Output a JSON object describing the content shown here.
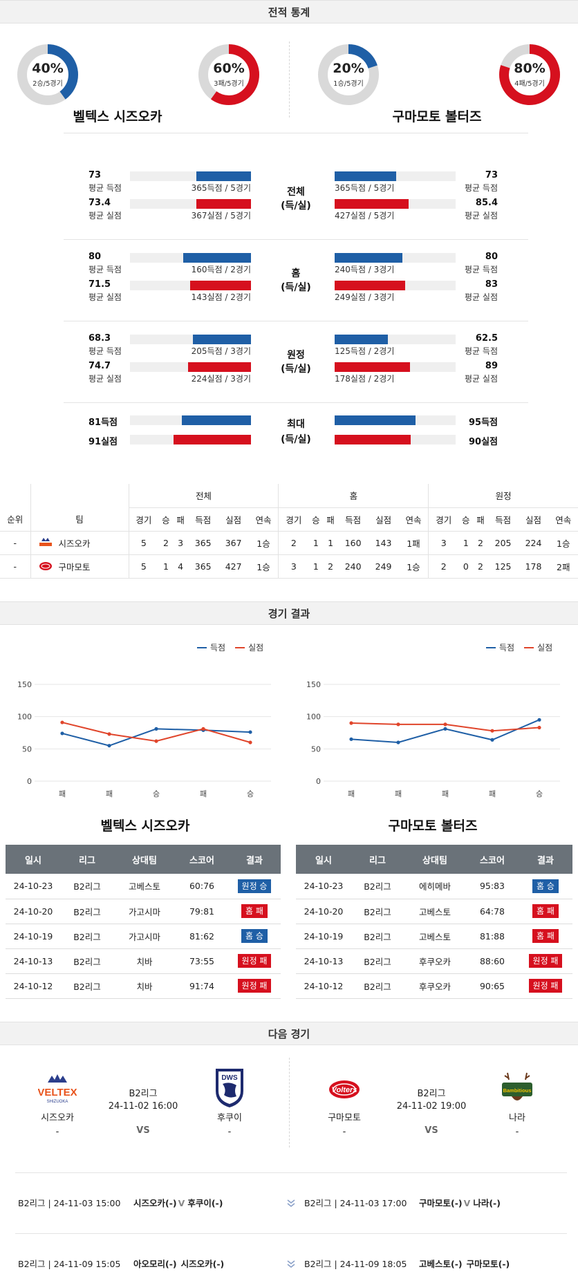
{
  "sections": {
    "record": "전적 통계",
    "results": "경기 결과",
    "next": "다음 경기"
  },
  "record": {
    "home_team": "벨텍스 시즈오카",
    "away_team": "구마모토 볼터즈",
    "donuts": [
      {
        "pct": "40%",
        "sub": "2승/5경기",
        "value": 0.4,
        "color": "#1f5fa6"
      },
      {
        "pct": "60%",
        "sub": "3패/5경기",
        "value": 0.6,
        "color": "#d6101e"
      },
      {
        "pct": "20%",
        "sub": "1승/5경기",
        "value": 0.2,
        "color": "#1f5fa6"
      },
      {
        "pct": "80%",
        "sub": "4패/5경기",
        "value": 0.8,
        "color": "#d6101e"
      }
    ],
    "groups": [
      {
        "mid1": "전체",
        "mid2": "(득/실)",
        "l1": {
          "val": "73",
          "lbl": "평균 득점",
          "bar": "365득점 / 5경기",
          "frac": 0.45
        },
        "l2": {
          "val": "73.4",
          "lbl": "평균 실점",
          "bar": "367실점 / 5경기",
          "frac": 0.45
        },
        "r1": {
          "val": "73",
          "lbl": "평균 득점",
          "bar": "365득점 / 5경기",
          "frac": 0.51
        },
        "r2": {
          "val": "85.4",
          "lbl": "평균 실점",
          "bar": "427실점 / 5경기",
          "frac": 0.61
        }
      },
      {
        "mid1": "홈",
        "mid2": "(득/실)",
        "l1": {
          "val": "80",
          "lbl": "평균 득점",
          "bar": "160득점 / 2경기",
          "frac": 0.56
        },
        "l2": {
          "val": "71.5",
          "lbl": "평균 실점",
          "bar": "143실점 / 2경기",
          "frac": 0.5
        },
        "r1": {
          "val": "80",
          "lbl": "평균 득점",
          "bar": "240득점 / 3경기",
          "frac": 0.56
        },
        "r2": {
          "val": "83",
          "lbl": "평균 실점",
          "bar": "249실점 / 3경기",
          "frac": 0.58
        }
      },
      {
        "mid1": "원정",
        "mid2": "(득/실)",
        "l1": {
          "val": "68.3",
          "lbl": "평균 득점",
          "bar": "205득점 / 3경기",
          "frac": 0.48
        },
        "l2": {
          "val": "74.7",
          "lbl": "평균 실점",
          "bar": "224실점 / 3경기",
          "frac": 0.52
        },
        "r1": {
          "val": "62.5",
          "lbl": "평균 득점",
          "bar": "125득점 / 2경기",
          "frac": 0.44
        },
        "r2": {
          "val": "89",
          "lbl": "평균 실점",
          "bar": "178실점 / 2경기",
          "frac": 0.62
        }
      }
    ],
    "max": {
      "mid1": "최대",
      "mid2": "(득/실)",
      "l1": {
        "val": "81득점",
        "frac": 0.57
      },
      "l2": {
        "val": "91실점",
        "frac": 0.64
      },
      "r1": {
        "val": "95득점",
        "frac": 0.67
      },
      "r2": {
        "val": "90실점",
        "frac": 0.63
      }
    }
  },
  "standings": {
    "groups": [
      "전체",
      "홈",
      "원정"
    ],
    "headers": [
      "순위",
      "팀",
      "경기",
      "승",
      "패",
      "득점",
      "실점",
      "연속",
      "경기",
      "승",
      "패",
      "득점",
      "실점",
      "연속",
      "경기",
      "승",
      "패",
      "득점",
      "실점",
      "연속"
    ],
    "rows": [
      [
        "-",
        "시즈오카",
        "5",
        "2",
        "3",
        "365",
        "367",
        "1승",
        "2",
        "1",
        "1",
        "160",
        "143",
        "1패",
        "3",
        "1",
        "2",
        "205",
        "224",
        "1승"
      ],
      [
        "-",
        "구마모토",
        "5",
        "1",
        "4",
        "365",
        "427",
        "1승",
        "3",
        "1",
        "2",
        "240",
        "249",
        "1승",
        "2",
        "0",
        "2",
        "125",
        "178",
        "2패"
      ]
    ]
  },
  "results": {
    "legend": {
      "scored": "득점",
      "conceded": "실점"
    },
    "teams": [
      "벨텍스 시즈오카",
      "구마모토 볼터즈"
    ],
    "headers": [
      "일시",
      "리그",
      "상대팀",
      "스코어",
      "결과"
    ],
    "left_rows": [
      {
        "date": "24-10-23",
        "league": "B2리그",
        "opp": "고베스토",
        "score": "60:76",
        "result": "원정 승",
        "color": "blue"
      },
      {
        "date": "24-10-20",
        "league": "B2리그",
        "opp": "가고시마",
        "score": "79:81",
        "result": "홈 패",
        "color": "red"
      },
      {
        "date": "24-10-19",
        "league": "B2리그",
        "opp": "가고시마",
        "score": "81:62",
        "result": "홈 승",
        "color": "blue"
      },
      {
        "date": "24-10-13",
        "league": "B2리그",
        "opp": "치바",
        "score": "73:55",
        "result": "원정 패",
        "color": "red"
      },
      {
        "date": "24-10-12",
        "league": "B2리그",
        "opp": "치바",
        "score": "91:74",
        "result": "원정 패",
        "color": "red"
      }
    ],
    "right_rows": [
      {
        "date": "24-10-23",
        "league": "B2리그",
        "opp": "에히메바",
        "score": "95:83",
        "result": "홈 승",
        "color": "blue"
      },
      {
        "date": "24-10-20",
        "league": "B2리그",
        "opp": "고베스토",
        "score": "64:78",
        "result": "홈 패",
        "color": "red"
      },
      {
        "date": "24-10-19",
        "league": "B2리그",
        "opp": "고베스토",
        "score": "81:88",
        "result": "홈 패",
        "color": "red"
      },
      {
        "date": "24-10-13",
        "league": "B2리그",
        "opp": "후쿠오카",
        "score": "88:60",
        "result": "원정 패",
        "color": "red"
      },
      {
        "date": "24-10-12",
        "league": "B2리그",
        "opp": "후쿠오카",
        "score": "90:65",
        "result": "원정 패",
        "color": "red"
      }
    ]
  },
  "chart_data": [
    {
      "type": "line",
      "categories": [
        "패",
        "패",
        "승",
        "패",
        "승"
      ],
      "ylim": [
        0,
        150
      ],
      "yticks": [
        "0",
        "50",
        "100",
        "150"
      ],
      "series": [
        {
          "name": "득점",
          "color": "#1f5fa6",
          "values": [
            74,
            55,
            81,
            79,
            76
          ]
        },
        {
          "name": "실점",
          "color": "#e0452b",
          "values": [
            91,
            73,
            62,
            81,
            60
          ]
        }
      ]
    },
    {
      "type": "line",
      "categories": [
        "패",
        "패",
        "패",
        "패",
        "승"
      ],
      "ylim": [
        0,
        150
      ],
      "yticks": [
        "0",
        "50",
        "100",
        "150"
      ],
      "series": [
        {
          "name": "득점",
          "color": "#1f5fa6",
          "values": [
            65,
            60,
            81,
            64,
            95
          ]
        },
        {
          "name": "실점",
          "color": "#e0452b",
          "values": [
            90,
            88,
            88,
            78,
            83
          ]
        }
      ]
    }
  ],
  "next": {
    "left": {
      "home": "시즈오카",
      "home_rec": "-",
      "league": "B2리그",
      "datetime": "24-11-02 16:00",
      "vs": "VS",
      "away": "후쿠이",
      "away_rec": "-",
      "home_logo": "VELTEX",
      "home_logo_sub": "SHIZUOKA",
      "away_logo": "DWS"
    },
    "right": {
      "home": "구마모토",
      "home_rec": "-",
      "league": "B2리그",
      "datetime": "24-11-02 19:00",
      "vs": "VS",
      "away": "나라",
      "away_rec": "-",
      "home_logo": "Volters",
      "away_logo": "Bambitious"
    },
    "schedule": [
      {
        "left_info": "B2리그 | 24-11-03 15:00",
        "left_match": "시즈오카(-)",
        "left_sep": "V",
        "left_opp": "후쿠이(-)",
        "right_info": "B2리그 | 24-11-03 17:00",
        "right_match": "구마모토(-)",
        "right_sep": "V",
        "right_opp": "나라(-)"
      },
      {
        "left_info": "B2리그 | 24-11-09 15:05",
        "left_match": "아오모리(-)",
        "left_sep": "",
        "left_opp": "시즈오카(-)",
        "right_info": "B2리그 | 24-11-09 18:05",
        "right_match": "고베스토(-)",
        "right_sep": "",
        "right_opp": "구마모토(-)"
      }
    ]
  }
}
